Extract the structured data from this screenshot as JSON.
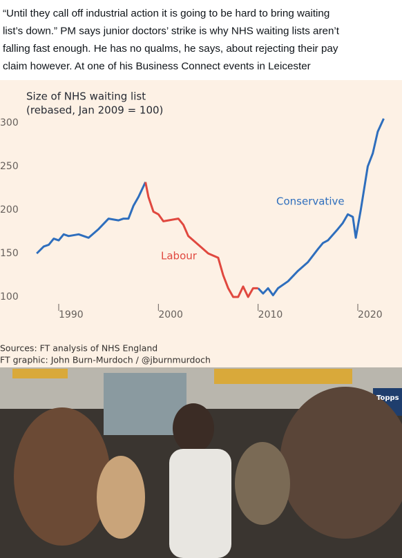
{
  "tweet": {
    "lines": [
      "“Until they call off industrial action it is going to be hard to bring waiting",
      "list’s down.” PM says junior doctors’ strike is why NHS waiting lists aren’t",
      "falling fast enough. He has no qualms, he says, about rejecting their pay",
      "claim however. At one of his Business Connect events in Leicester"
    ]
  },
  "chart_data": {
    "type": "line",
    "title": [
      "Size of NHS waiting list",
      "(rebased, Jan 2009 = 100)"
    ],
    "x": [
      1987.8,
      1988.5,
      1989,
      1989.5,
      1990,
      1990.5,
      1991,
      1992,
      1993,
      1993.5,
      1994,
      1995,
      1996,
      1996.5,
      1997,
      1997.5,
      1998,
      1998.7,
      1999,
      1999.5,
      2000,
      2000.5,
      2001,
      2002,
      2002.5,
      2003,
      2004,
      2005,
      2006,
      2006.5,
      2007,
      2007.5,
      2008,
      2008.5,
      2009,
      2009.5,
      2010,
      2010.5,
      2011,
      2011.5,
      2012,
      2013,
      2014,
      2015,
      2016,
      2016.5,
      2017,
      2018,
      2018.5,
      2019,
      2019.5,
      2019.8,
      2020.3,
      2021,
      2021.5,
      2022,
      2022.6
    ],
    "series": [
      {
        "name": "Conservative",
        "color": "#2e6ebd",
        "values": [
          150,
          158,
          160,
          167,
          165,
          172,
          170,
          172,
          168,
          173,
          178,
          190,
          188,
          190,
          190,
          205,
          215,
          232,
          null,
          null,
          null,
          null,
          null,
          null,
          null,
          null,
          null,
          null,
          null,
          null,
          null,
          null,
          null,
          null,
          null,
          null,
          110,
          104,
          110,
          102,
          110,
          118,
          130,
          140,
          155,
          162,
          165,
          178,
          185,
          195,
          192,
          168,
          200,
          250,
          265,
          290,
          305
        ]
      },
      {
        "name": "Labour",
        "color": "#e0483f",
        "values": [
          null,
          null,
          null,
          null,
          null,
          null,
          null,
          null,
          null,
          null,
          null,
          null,
          null,
          null,
          null,
          null,
          null,
          232,
          215,
          198,
          195,
          187,
          188,
          190,
          183,
          170,
          160,
          150,
          145,
          125,
          110,
          100,
          100,
          112,
          100,
          110,
          110,
          null,
          null,
          null,
          null,
          null,
          null,
          null,
          null,
          null,
          null,
          null,
          null,
          null,
          null,
          null,
          null,
          null,
          null,
          null,
          null
        ]
      }
    ],
    "xlim": [
      1985.5,
      2025
    ],
    "xticks": [
      1990,
      2000,
      2010,
      2020
    ],
    "ylim": [
      100,
      300
    ],
    "yticks": [
      100,
      150,
      200,
      250,
      300
    ],
    "sources": [
      "Sources: FT analysis of NHS England",
      "FT graphic: John Burn-Murdoch / @jburnmurdoch"
    ]
  },
  "photo": {
    "sign": "Topps"
  }
}
